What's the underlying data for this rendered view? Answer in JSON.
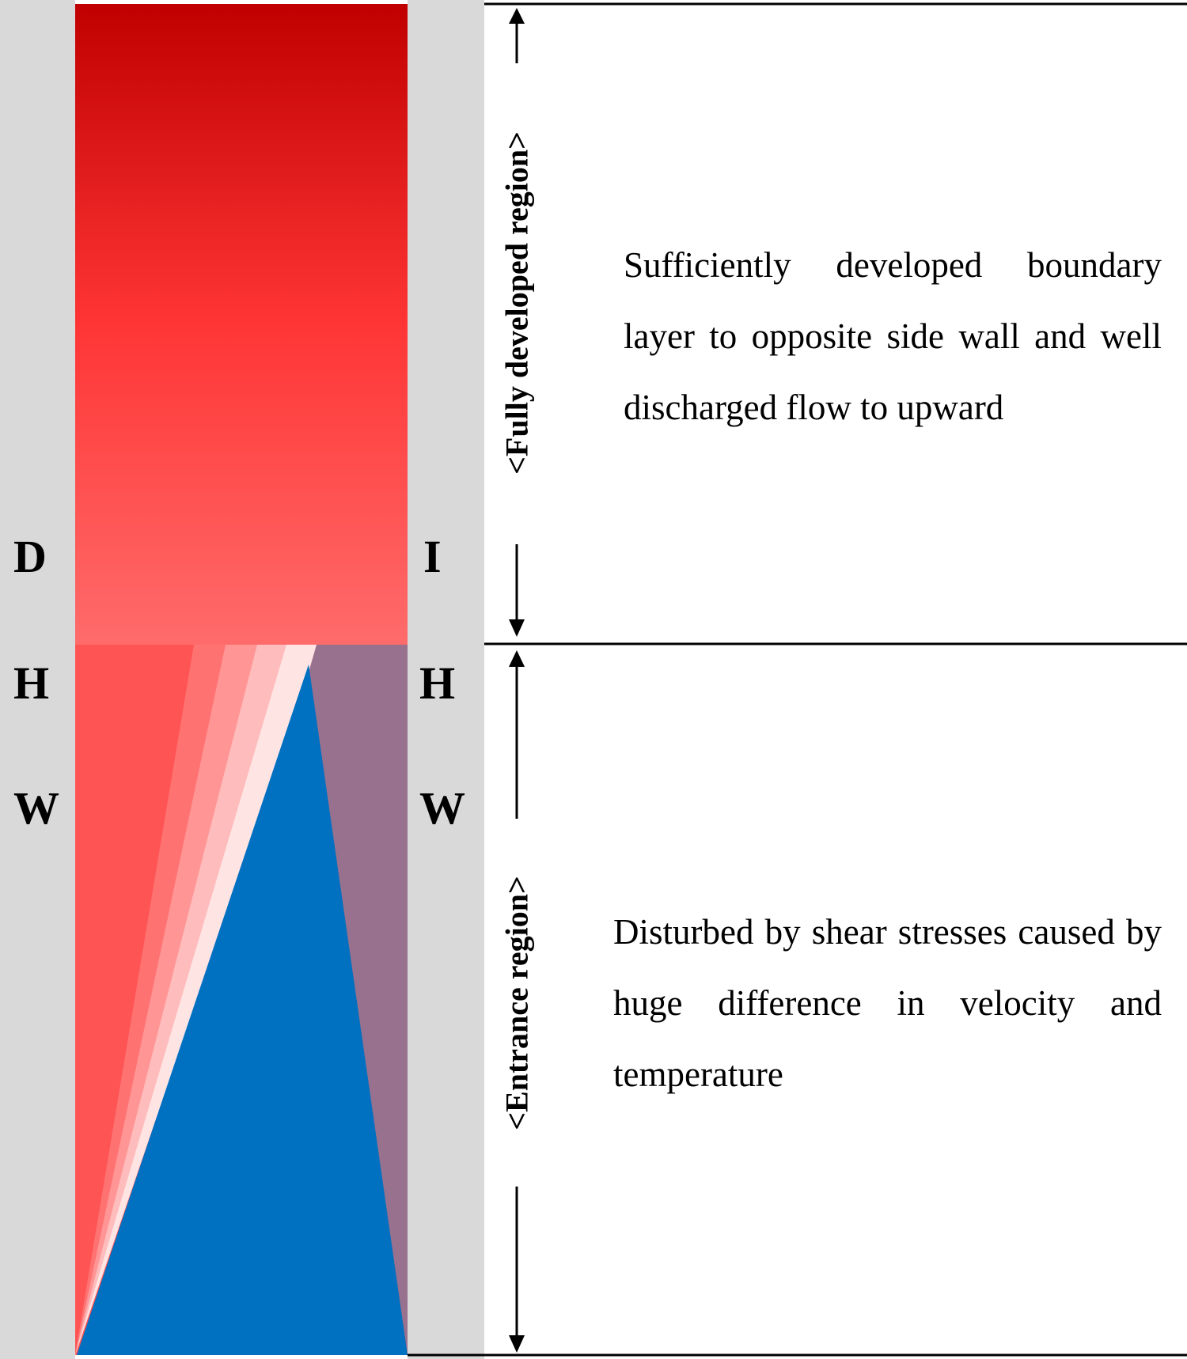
{
  "left_wall": {
    "letters": [
      "D",
      "H",
      "W"
    ]
  },
  "right_wall": {
    "letters": [
      "I",
      "H",
      "W"
    ]
  },
  "regions": {
    "upper": {
      "label": "<Fully developed region>",
      "description": "Sufficiently developed boundary layer to opposite side wall and well discharged flow to upward"
    },
    "lower": {
      "label": "<Entrance region>",
      "description": "Disturbed by shear stresses caused by huge difference in velocity and temperature"
    }
  },
  "colors": {
    "wall": "#d9d9d9",
    "hot_top": "#c00000",
    "hot_bottom": "#ff6b6b",
    "hot_layer": "#ff5454",
    "cold_core": "#0070c0",
    "mixed_zone": "#98718f"
  }
}
